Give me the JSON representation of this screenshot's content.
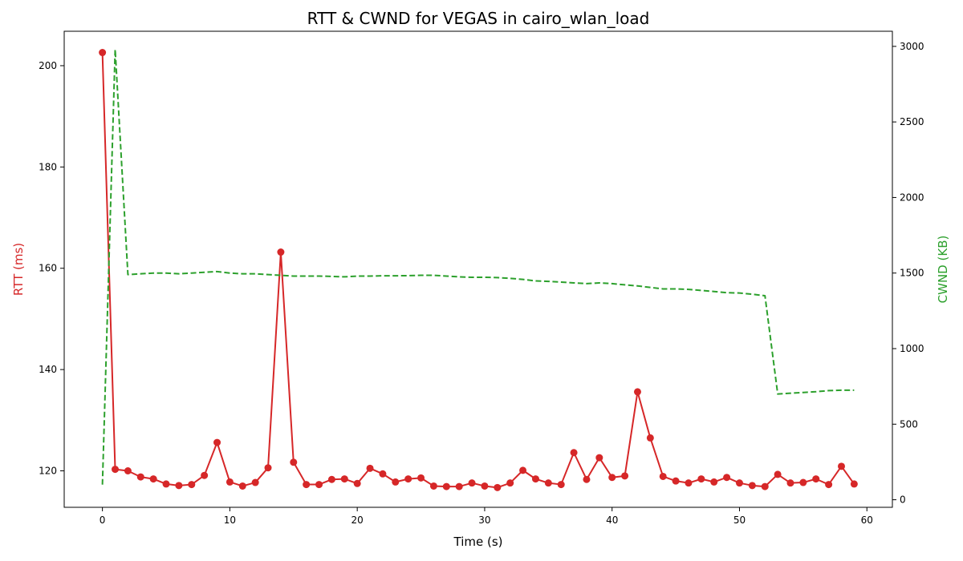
{
  "chart_data": {
    "type": "line",
    "title": "RTT & CWND for VEGAS in cairo_wlan_load",
    "xlabel": "Time (s)",
    "xlim": [
      -3,
      62
    ],
    "x_ticks": [
      0,
      10,
      20,
      30,
      40,
      50,
      60
    ],
    "x": [
      0,
      1,
      2,
      3,
      4,
      5,
      6,
      7,
      8,
      9,
      10,
      11,
      12,
      13,
      14,
      15,
      16,
      17,
      18,
      19,
      20,
      21,
      22,
      23,
      24,
      25,
      26,
      27,
      28,
      29,
      30,
      31,
      32,
      33,
      34,
      35,
      36,
      37,
      38,
      39,
      40,
      41,
      42,
      43,
      44,
      45,
      46,
      47,
      48,
      49,
      50,
      51,
      52,
      53,
      54,
      55,
      56,
      57,
      58,
      59
    ],
    "y_left": {
      "label": "RTT (ms)",
      "color": "#d62728",
      "ylim": [
        112.8,
        206.8
      ],
      "ticks": [
        120,
        140,
        160,
        180,
        200
      ]
    },
    "y_right": {
      "label": "CWND (KB)",
      "color": "#2ca02c",
      "ylim": [
        -50,
        3100
      ],
      "ticks": [
        0,
        500,
        1000,
        1500,
        2000,
        2500,
        3000
      ]
    },
    "series": [
      {
        "name": "RTT",
        "axis": "left",
        "style": "solid-markers",
        "color": "#d62728",
        "values": [
          202.6,
          120.3,
          120.0,
          118.8,
          118.4,
          117.4,
          117.1,
          117.3,
          119.1,
          125.6,
          117.8,
          117.0,
          117.7,
          120.6,
          163.2,
          121.7,
          117.3,
          117.3,
          118.3,
          118.4,
          117.5,
          120.5,
          119.4,
          117.8,
          118.4,
          118.6,
          117.0,
          116.9,
          116.9,
          117.6,
          117.0,
          116.7,
          117.6,
          120.1,
          118.4,
          117.6,
          117.3,
          123.6,
          118.3,
          122.6,
          118.7,
          119.0,
          135.6,
          126.5,
          118.9,
          118.0,
          117.6,
          118.4,
          117.8,
          118.7,
          117.6,
          117.1,
          116.9,
          119.3,
          117.6,
          117.7,
          118.4,
          117.3,
          120.9,
          117.4
        ]
      },
      {
        "name": "CWND",
        "axis": "right",
        "style": "dashed",
        "color": "#2ca02c",
        "values": [
          100,
          2980,
          1490,
          1495,
          1500,
          1500,
          1495,
          1500,
          1505,
          1510,
          1500,
          1495,
          1495,
          1490,
          1485,
          1480,
          1480,
          1480,
          1478,
          1475,
          1480,
          1480,
          1482,
          1482,
          1483,
          1485,
          1485,
          1480,
          1475,
          1472,
          1472,
          1470,
          1465,
          1458,
          1448,
          1445,
          1440,
          1435,
          1430,
          1435,
          1430,
          1422,
          1415,
          1405,
          1395,
          1395,
          1392,
          1385,
          1378,
          1370,
          1368,
          1360,
          1350,
          700,
          705,
          710,
          715,
          722,
          725,
          725
        ]
      }
    ]
  }
}
